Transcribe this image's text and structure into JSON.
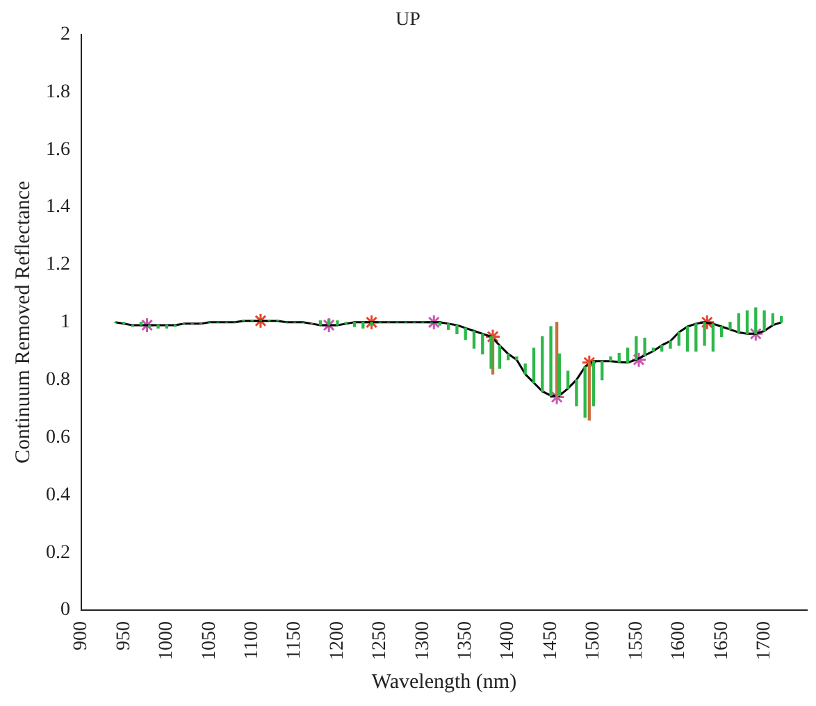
{
  "chart_data": {
    "type": "line",
    "title": "UP",
    "xlabel": "Wavelength (nm)",
    "ylabel": "Continuum Removed Reflectance",
    "xlim": [
      900,
      1750
    ],
    "xticks": [
      900,
      950,
      1000,
      1050,
      1100,
      1150,
      1200,
      1250,
      1300,
      1350,
      1400,
      1450,
      1500,
      1550,
      1600,
      1650,
      1700
    ],
    "ylim": [
      0,
      2
    ],
    "yticks": [
      0,
      0.2,
      0.4,
      0.6,
      0.8,
      1,
      1.2,
      1.4,
      1.6,
      1.8,
      2
    ],
    "grid": false,
    "legend": false,
    "series": [
      {
        "type": "bar",
        "color": "#2db84a",
        "x": [
          940,
          950,
          960,
          970,
          980,
          990,
          1000,
          1010,
          1020,
          1030,
          1040,
          1050,
          1060,
          1070,
          1080,
          1090,
          1100,
          1110,
          1120,
          1130,
          1140,
          1150,
          1160,
          1170,
          1180,
          1190,
          1200,
          1210,
          1220,
          1230,
          1240,
          1250,
          1260,
          1270,
          1280,
          1290,
          1300,
          1310,
          1320,
          1330,
          1340,
          1350,
          1360,
          1370,
          1380,
          1390,
          1400,
          1410,
          1420,
          1430,
          1440,
          1450,
          1460,
          1470,
          1480,
          1490,
          1500,
          1510,
          1520,
          1530,
          1540,
          1550,
          1560,
          1570,
          1580,
          1590,
          1600,
          1610,
          1620,
          1630,
          1640,
          1650,
          1660,
          1670,
          1680,
          1690,
          1700,
          1710,
          1720
        ],
        "base": [
          1.0,
          0.995,
          0.99,
          0.99,
          0.99,
          0.99,
          0.99,
          0.99,
          0.995,
          0.995,
          0.995,
          1.0,
          1.0,
          1.0,
          1.0,
          1.005,
          1.005,
          1.005,
          1.005,
          1.005,
          1.0,
          1.0,
          1.0,
          0.995,
          0.99,
          0.99,
          0.99,
          0.995,
          1.0,
          1.0,
          1.0,
          1.0,
          1.0,
          1.0,
          1.0,
          1.0,
          1.0,
          1.0,
          1.0,
          0.995,
          0.99,
          0.98,
          0.97,
          0.96,
          0.95,
          0.92,
          0.89,
          0.87,
          0.82,
          0.79,
          0.76,
          0.745,
          0.745,
          0.77,
          0.8,
          0.845,
          0.865,
          0.865,
          0.865,
          0.862,
          0.86,
          0.87,
          0.885,
          0.9,
          0.92,
          0.935,
          0.965,
          0.985,
          0.995,
          1.0,
          0.995,
          0.985,
          0.975,
          0.965,
          0.96,
          0.96,
          0.97,
          0.99,
          1.0
        ],
        "values": [
          0,
          0.005,
          -0.005,
          0.01,
          -0.005,
          -0.01,
          -0.01,
          -0.005,
          0,
          0,
          0,
          0,
          0,
          0,
          0,
          0,
          0,
          0,
          0,
          0,
          0,
          0,
          0,
          0,
          0.015,
          0.02,
          0.015,
          0.005,
          -0.015,
          -0.02,
          -0.01,
          0,
          0,
          0,
          0,
          0,
          0,
          0,
          -0.01,
          -0.02,
          -0.03,
          -0.04,
          -0.06,
          -0.07,
          -0.11,
          -0.08,
          -0.02,
          0.01,
          0.035,
          0.12,
          0.19,
          0.24,
          0.145,
          0.06,
          -0.09,
          -0.175,
          -0.155,
          -0.065,
          0.015,
          0.03,
          0.05,
          0.08,
          0.06,
          0.01,
          -0.02,
          -0.025,
          -0.045,
          -0.085,
          -0.095,
          -0.08,
          -0.095,
          -0.035,
          0.025,
          0.065,
          0.08,
          0.09,
          0.07,
          0.04,
          0.02
        ]
      },
      {
        "type": "bar",
        "color": "#c8703c",
        "x": [
          1382,
          1457,
          1495
        ],
        "base": [
          0.95,
          0.74,
          0.86
        ],
        "values": [
          -0.13,
          0.26,
          -0.2
        ]
      },
      {
        "color": "#000000",
        "x": [
          940,
          950,
          960,
          970,
          980,
          990,
          1000,
          1010,
          1020,
          1030,
          1040,
          1050,
          1060,
          1070,
          1080,
          1090,
          1100,
          1110,
          1120,
          1130,
          1140,
          1150,
          1160,
          1170,
          1180,
          1190,
          1200,
          1210,
          1220,
          1230,
          1240,
          1250,
          1260,
          1270,
          1280,
          1290,
          1300,
          1310,
          1320,
          1330,
          1340,
          1350,
          1360,
          1370,
          1380,
          1390,
          1400,
          1410,
          1420,
          1430,
          1440,
          1450,
          1460,
          1470,
          1480,
          1490,
          1500,
          1510,
          1520,
          1530,
          1540,
          1550,
          1560,
          1570,
          1580,
          1590,
          1600,
          1610,
          1620,
          1630,
          1640,
          1650,
          1660,
          1670,
          1680,
          1690,
          1700,
          1710,
          1720
        ],
        "values": [
          1.0,
          0.995,
          0.99,
          0.99,
          0.99,
          0.99,
          0.99,
          0.99,
          0.995,
          0.995,
          0.995,
          1.0,
          1.0,
          1.0,
          1.0,
          1.005,
          1.005,
          1.005,
          1.005,
          1.005,
          1.0,
          1.0,
          1.0,
          0.995,
          0.99,
          0.99,
          0.99,
          0.995,
          1.0,
          1.0,
          1.0,
          1.0,
          1.0,
          1.0,
          1.0,
          1.0,
          1.0,
          1.0,
          1.0,
          0.995,
          0.99,
          0.98,
          0.97,
          0.96,
          0.95,
          0.92,
          0.89,
          0.87,
          0.82,
          0.79,
          0.76,
          0.745,
          0.745,
          0.77,
          0.8,
          0.845,
          0.865,
          0.865,
          0.865,
          0.862,
          0.86,
          0.87,
          0.885,
          0.9,
          0.92,
          0.935,
          0.965,
          0.985,
          0.995,
          1.0,
          0.995,
          0.985,
          0.975,
          0.965,
          0.96,
          0.96,
          0.97,
          0.99,
          1.0
        ]
      },
      {
        "type": "scatter",
        "color": "#e8452c",
        "marker": "cross",
        "x": [
          1110,
          1240,
          1382,
          1495,
          1633
        ],
        "values": [
          1.005,
          1.0,
          0.95,
          0.86,
          1.0
        ]
      },
      {
        "type": "scatter",
        "color": "#c757b0",
        "marker": "cross",
        "x": [
          977,
          1190,
          1313,
          1457,
          1553,
          1690
        ],
        "values": [
          0.99,
          0.99,
          1.0,
          0.74,
          0.87,
          0.96
        ]
      }
    ]
  }
}
